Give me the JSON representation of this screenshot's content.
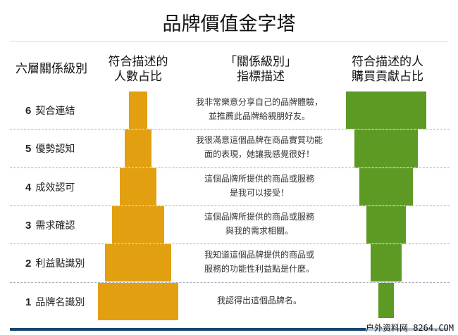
{
  "title": "品牌價值金字塔",
  "headers": {
    "levels": "六層關係級別",
    "people_share": [
      "符合描述的",
      "人數占比"
    ],
    "indicator": [
      "「關係級別」",
      "指標描述"
    ],
    "purchase_share": [
      "符合描述的人",
      "購買貢獻占比"
    ]
  },
  "colors": {
    "people": "#e2a010",
    "purchase": "#5c9a24"
  },
  "rows": [
    {
      "num": "6",
      "name": "契合連結",
      "desc": [
        "我非常樂意分享自己的品牌體驗，",
        "並推薦此品牌給親朋好友。"
      ],
      "people_rel": 23,
      "purchase_rel": 100
    },
    {
      "num": "5",
      "name": "優勢認知",
      "desc": [
        "我很滿意這個品牌在商品實質功能",
        "面的表現，她讓我感覺很好！"
      ],
      "people_rel": 33,
      "purchase_rel": 79
    },
    {
      "num": "4",
      "name": "成效認可",
      "desc": [
        "這個品牌所提供的商品或服務",
        "是我可以接受！"
      ],
      "people_rel": 45,
      "purchase_rel": 66
    },
    {
      "num": "3",
      "name": "需求確認",
      "desc": [
        "這個品牌所提供的商品或服務",
        "與我的需求相關。"
      ],
      "people_rel": 65,
      "purchase_rel": 49
    },
    {
      "num": "2",
      "name": "利益點識別",
      "desc": [
        "我知道這個品牌提供的商品或",
        "服務的功能性利益點是什麼。"
      ],
      "people_rel": 82,
      "purchase_rel": 38
    },
    {
      "num": "1",
      "name": "品牌名識別",
      "desc": [
        "我認得出這個品牌名。"
      ],
      "people_rel": 100,
      "purchase_rel": 19
    }
  ],
  "watermark": "户外资料网 8264.COM"
}
